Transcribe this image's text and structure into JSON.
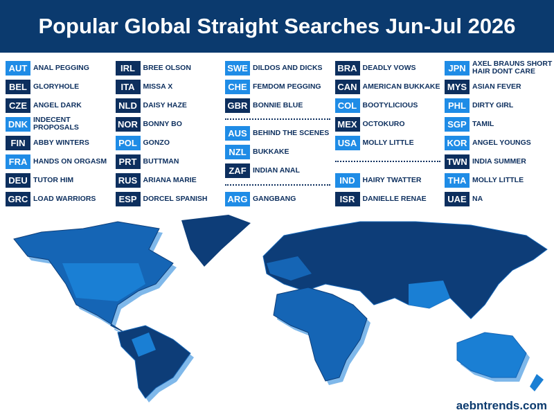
{
  "header": {
    "title": "Popular Global Straight Searches Jun-Jul 2026"
  },
  "columns": [
    {
      "groups": [
        [
          {
            "code": "AUT",
            "label": "ANAL PEGGING",
            "style": "light"
          },
          {
            "code": "BEL",
            "label": "GLORYHOLE",
            "style": "dark"
          },
          {
            "code": "CZE",
            "label": "ANGEL DARK",
            "style": "dark"
          },
          {
            "code": "DNK",
            "label": "INDECENT PROPOSALS",
            "style": "light"
          },
          {
            "code": "FIN",
            "label": "ABBY WINTERS",
            "style": "dark"
          },
          {
            "code": "FRA",
            "label": "HANDS ON ORGASM",
            "style": "light"
          },
          {
            "code": "DEU",
            "label": "TUTOR HIM",
            "style": "dark"
          },
          {
            "code": "GRC",
            "label": "LOAD WARRIORS",
            "style": "dark"
          }
        ]
      ]
    },
    {
      "groups": [
        [
          {
            "code": "IRL",
            "label": "BREE OLSON",
            "style": "dark"
          },
          {
            "code": "ITA",
            "label": "MISSA X",
            "style": "dark"
          },
          {
            "code": "NLD",
            "label": "DAISY HAZE",
            "style": "dark"
          },
          {
            "code": "NOR",
            "label": "BONNY BO",
            "style": "dark"
          },
          {
            "code": "POL",
            "label": "GONZO",
            "style": "light"
          },
          {
            "code": "PRT",
            "label": "BUTTMAN",
            "style": "dark"
          },
          {
            "code": "RUS",
            "label": "ARIANA MARIE",
            "style": "dark"
          },
          {
            "code": "ESP",
            "label": "DORCEL SPANISH",
            "style": "dark"
          }
        ]
      ]
    },
    {
      "groups": [
        [
          {
            "code": "SWE",
            "label": "DILDOS AND DICKS",
            "style": "light"
          },
          {
            "code": "CHE",
            "label": "FEMDOM PEGGING",
            "style": "light"
          },
          {
            "code": "GBR",
            "label": "BONNIE BLUE",
            "style": "dark"
          }
        ],
        [
          {
            "code": "AUS",
            "label": "BEHIND THE SCENES",
            "style": "light"
          },
          {
            "code": "NZL",
            "label": "BUKKAKE",
            "style": "light"
          },
          {
            "code": "ZAF",
            "label": "INDIAN ANAL",
            "style": "dark"
          }
        ],
        [
          {
            "code": "ARG",
            "label": "GANGBANG",
            "style": "light"
          }
        ]
      ]
    },
    {
      "groups": [
        [
          {
            "code": "BRA",
            "label": "DEADLY VOWS",
            "style": "dark"
          },
          {
            "code": "CAN",
            "label": "AMERICAN BUKKAKE",
            "style": "dark"
          },
          {
            "code": "COL",
            "label": "BOOTYLICIOUS",
            "style": "light"
          },
          {
            "code": "MEX",
            "label": "OCTOKURO",
            "style": "dark"
          },
          {
            "code": "USA",
            "label": "MOLLY LITTLE",
            "style": "light"
          }
        ],
        [
          {
            "code": "IND",
            "label": "HAIRY TWATTER",
            "style": "light"
          },
          {
            "code": "ISR",
            "label": "DANIELLE RENAE",
            "style": "dark"
          }
        ]
      ]
    },
    {
      "groups": [
        [
          {
            "code": "JPN",
            "label": "AXEL BRAUNS SHORT HAIR DONT CARE",
            "style": "light"
          },
          {
            "code": "MYS",
            "label": "ASIAN FEVER",
            "style": "dark"
          },
          {
            "code": "PHL",
            "label": "DIRTY GIRL",
            "style": "light"
          },
          {
            "code": "SGP",
            "label": "TAMIL",
            "style": "light"
          },
          {
            "code": "KOR",
            "label": "ANGEL YOUNGS",
            "style": "light"
          },
          {
            "code": "TWN",
            "label": "INDIA SUMMER",
            "style": "dark"
          },
          {
            "code": "THA",
            "label": "MOLLY LITTLE",
            "style": "light"
          },
          {
            "code": "UAE",
            "label": "NA",
            "style": "dark"
          }
        ]
      ]
    }
  ],
  "footer": {
    "site": "aebntrends.com"
  }
}
